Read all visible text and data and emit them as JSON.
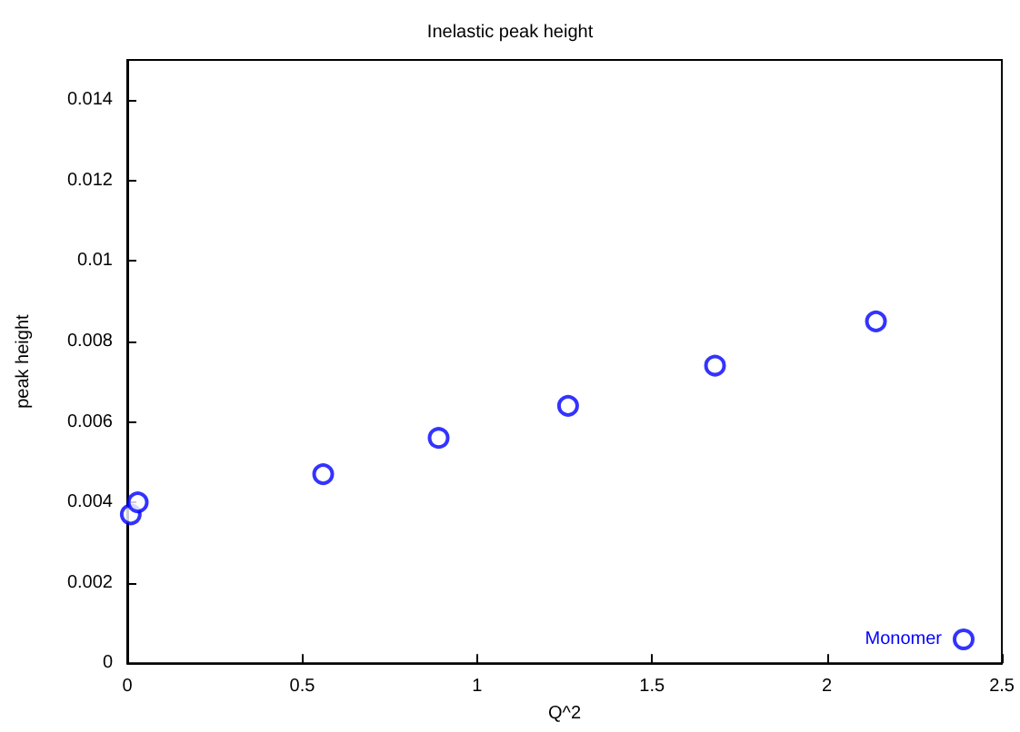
{
  "chart_data": {
    "type": "scatter",
    "title": "Inelastic peak height",
    "xlabel": "Q^2",
    "ylabel": "peak height",
    "x": [
      0.01,
      0.03,
      0.56,
      0.89,
      1.26,
      1.68,
      2.14
    ],
    "series": [
      {
        "name": "Monomer",
        "color": "#0000ff",
        "values": [
          0.0037,
          0.004,
          0.0047,
          0.0056,
          0.0064,
          0.0074,
          0.0085
        ]
      }
    ],
    "xlim": [
      0,
      2.5
    ],
    "xticks": [
      0,
      0.5,
      1,
      1.5,
      2,
      2.5
    ],
    "ylim": [
      0,
      0.015
    ],
    "yticks": [
      0,
      0.002,
      0.004,
      0.006,
      0.008,
      0.01,
      0.012,
      0.014
    ],
    "marker": "circle",
    "legend": "bottom right",
    "grid": false
  }
}
